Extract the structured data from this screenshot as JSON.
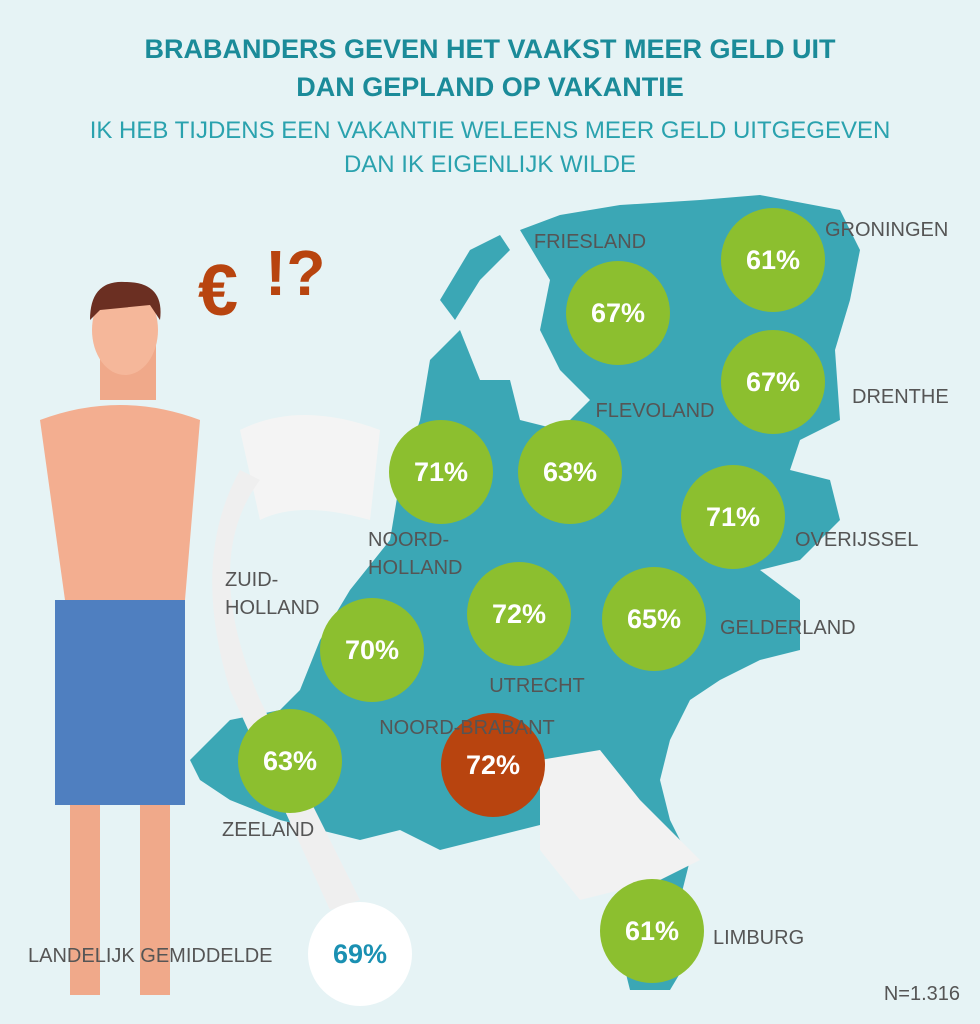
{
  "header": {
    "title_lines": [
      "BRABANDERS GEVEN HET VAAKST MEER GELD UIT",
      "DAN GEPLAND OP VAKANTIE"
    ],
    "subtitle_lines": [
      "IK HEB TIJDENS EEN VAKANTIE WELEENS MEER GELD UITGEGEVEN",
      "DAN IK EIGENLIJK WILDE"
    ]
  },
  "decoration": [
    "€",
    "!?"
  ],
  "provinces": [
    {
      "name_lines": [
        "GRONINGEN"
      ],
      "value": "61%"
    },
    {
      "name_lines": [
        "FRIESLAND"
      ],
      "value": "67%"
    },
    {
      "name_lines": [
        "DRENTHE"
      ],
      "value": "67%"
    },
    {
      "name_lines": [
        "FLEVOLAND"
      ],
      "value": "63%"
    },
    {
      "name_lines": [
        "NOORD-",
        "HOLLAND"
      ],
      "value": "71%"
    },
    {
      "name_lines": [
        "OVERIJSSEL"
      ],
      "value": "71%"
    },
    {
      "name_lines": [
        "UTRECHT"
      ],
      "value": "72%"
    },
    {
      "name_lines": [
        "GELDERLAND"
      ],
      "value": "65%"
    },
    {
      "name_lines": [
        "ZUID-",
        "HOLLAND"
      ],
      "value": "70%"
    },
    {
      "name_lines": [
        "NOORD-BRABANT"
      ],
      "value": "72%",
      "highlight": true
    },
    {
      "name_lines": [
        "ZEELAND"
      ],
      "value": "63%"
    },
    {
      "name_lines": [
        "LIMBURG"
      ],
      "value": "61%"
    }
  ],
  "national": {
    "name": "LANDELIJK GEMIDDELDE",
    "value": "69%"
  },
  "footnote": "N=1.316"
}
